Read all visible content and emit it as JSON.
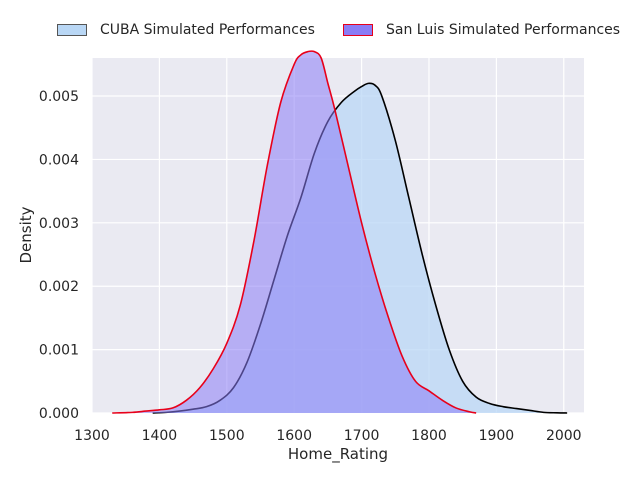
{
  "chart_data": {
    "type": "area",
    "title": "",
    "xlabel": "Home_Rating",
    "ylabel": "Density",
    "xlim": [
      1300,
      2030
    ],
    "ylim": [
      0,
      0.0056
    ],
    "xticks": [
      "1300",
      "1400",
      "1500",
      "1600",
      "1700",
      "1800",
      "1900",
      "2000"
    ],
    "yticks": [
      "0.000",
      "0.001",
      "0.002",
      "0.003",
      "0.004",
      "0.005"
    ],
    "grid": true,
    "legend_position": "top-center",
    "series": [
      {
        "name": "CUBA Simulated Performances",
        "fill_color": "#b9d7f5",
        "line_color": "#000000",
        "x": [
          1390,
          1410,
          1430,
          1450,
          1470,
          1490,
          1510,
          1530,
          1550,
          1570,
          1590,
          1610,
          1630,
          1650,
          1670,
          1690,
          1700,
          1710,
          1720,
          1730,
          1750,
          1770,
          1790,
          1810,
          1830,
          1850,
          1870,
          1890,
          1910,
          1930,
          1950,
          1970,
          1990,
          2005
        ],
        "y": [
          0.0,
          1e-05,
          3e-05,
          6e-05,
          0.0001,
          0.0002,
          0.0004,
          0.0008,
          0.0014,
          0.0021,
          0.0028,
          0.0034,
          0.0041,
          0.0046,
          0.0049,
          0.00508,
          0.00515,
          0.0052,
          0.00517,
          0.005,
          0.0043,
          0.0034,
          0.0025,
          0.0017,
          0.001,
          0.0005,
          0.00025,
          0.00015,
          0.0001,
          7e-05,
          4e-05,
          1e-05,
          3e-06,
          0.0
        ]
      },
      {
        "name": "San Luis Simulated Performances",
        "fill_color": "#8a7cf5",
        "line_color": "#e8001a",
        "x": [
          1330,
          1360,
          1380,
          1400,
          1420,
          1440,
          1460,
          1480,
          1500,
          1520,
          1540,
          1560,
          1580,
          1600,
          1610,
          1620,
          1630,
          1640,
          1650,
          1660,
          1680,
          1700,
          1720,
          1740,
          1760,
          1780,
          1800,
          1820,
          1840,
          1860,
          1870
        ],
        "y": [
          0.0,
          1e-05,
          3e-05,
          5e-05,
          8e-05,
          0.0002,
          0.0004,
          0.0007,
          0.0011,
          0.0017,
          0.0027,
          0.0039,
          0.0049,
          0.0055,
          0.00565,
          0.0057,
          0.0057,
          0.0056,
          0.0052,
          0.0048,
          0.0039,
          0.003,
          0.0022,
          0.0015,
          0.0009,
          0.0005,
          0.00035,
          0.0002,
          8e-05,
          2e-05,
          0.0
        ]
      }
    ]
  }
}
